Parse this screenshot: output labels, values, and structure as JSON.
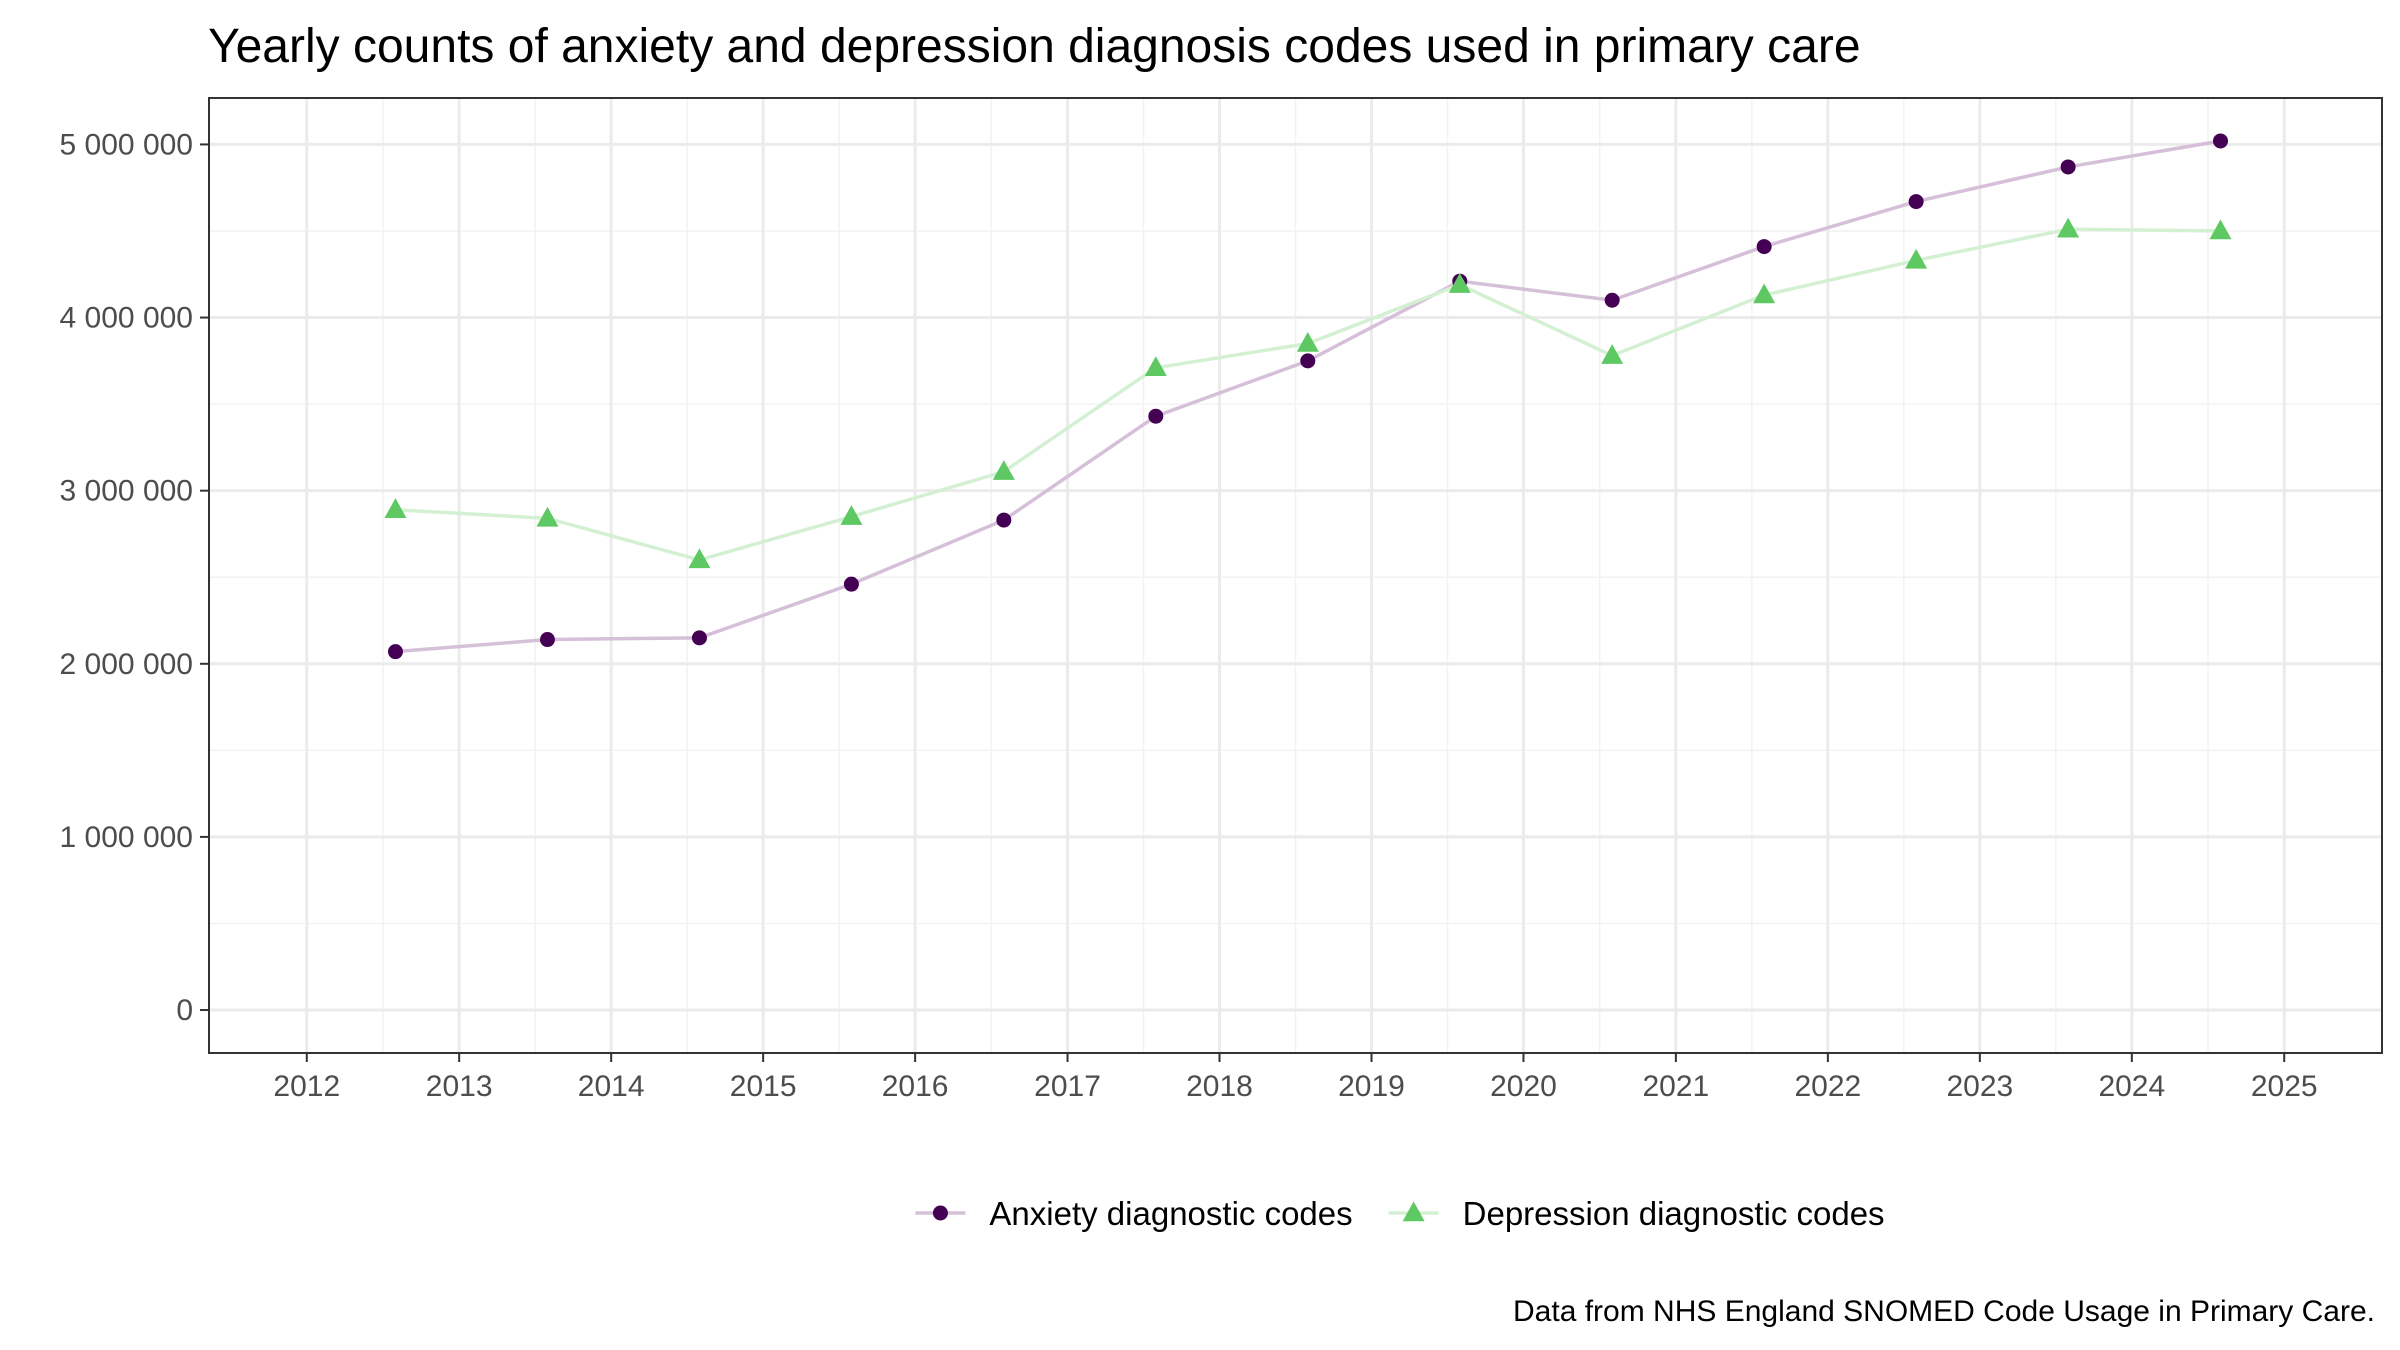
{
  "chart_data": {
    "type": "line",
    "title": "Yearly counts of anxiety and depression diagnosis codes used in primary care",
    "xlabel": "",
    "ylabel": "",
    "caption": "Data from NHS England SNOMED Code Usage in Primary Care.",
    "x": [
      "2012-08-01",
      "2013-08-01",
      "2014-08-01",
      "2015-08-01",
      "2016-08-01",
      "2017-08-01",
      "2018-08-01",
      "2019-08-01",
      "2020-08-01",
      "2021-08-01",
      "2022-08-01",
      "2023-08-01",
      "2024-08-01"
    ],
    "xlim": [
      "2012-01-01",
      "2025-01-01"
    ],
    "ylim": [
      0,
      5000000
    ],
    "x_ticks": [
      "2012",
      "2013",
      "2014",
      "2015",
      "2016",
      "2017",
      "2018",
      "2019",
      "2020",
      "2021",
      "2022",
      "2023",
      "2024",
      "2025"
    ],
    "y_ticks": [
      "0",
      "1 000 000",
      "2 000 000",
      "3 000 000",
      "4 000 000",
      "5 000 000"
    ],
    "grid": true,
    "legend_position": "bottom",
    "series": [
      {
        "name": "Anxiety diagnostic codes",
        "marker": "circle",
        "color": "#440154",
        "line_color": "#d6bfd9",
        "values": [
          2070000,
          2140000,
          2150000,
          2460000,
          2830000,
          3430000,
          3750000,
          4210000,
          4100000,
          4410000,
          4670000,
          4870000,
          5020000
        ]
      },
      {
        "name": "Depression diagnostic codes",
        "marker": "triangle",
        "color": "#5ec962",
        "line_color": "#d4f0d3",
        "values": [
          2890000,
          2840000,
          2600000,
          2850000,
          3110000,
          3710000,
          3850000,
          4190000,
          3780000,
          4130000,
          4330000,
          4510000,
          4500000
        ]
      }
    ]
  }
}
